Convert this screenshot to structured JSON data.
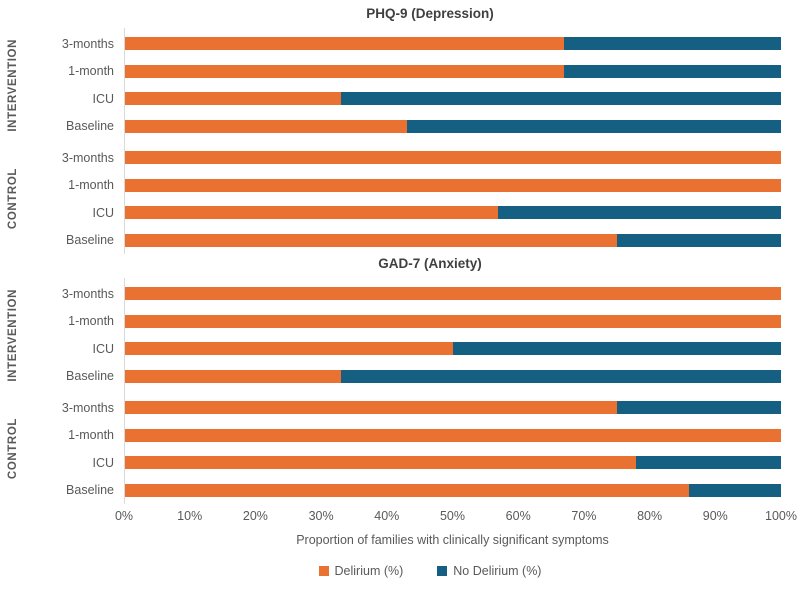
{
  "chart_data": {
    "type": "bar",
    "stacked": true,
    "orientation": "horizontal",
    "unit": "%",
    "xlim": [
      0,
      100
    ],
    "x_ticks": [
      "0%",
      "10%",
      "20%",
      "30%",
      "40%",
      "50%",
      "60%",
      "70%",
      "80%",
      "90%",
      "100%"
    ],
    "xlabel": "Proportion of families with clinically significant symptoms",
    "grid": false,
    "legend_position": "bottom",
    "legend": [
      {
        "label": "Delirium (%)",
        "color": "#E97132"
      },
      {
        "label": "No Delirium (%)",
        "color": "#156082"
      }
    ],
    "series_order": [
      "Delirium (%)",
      "No Delirium (%)"
    ],
    "panels": [
      {
        "title": "PHQ-9 (Depression)",
        "groups": [
          {
            "label": "INTERVENTION",
            "rows": [
              {
                "label": "3-months",
                "delirium": 67,
                "no_delirium": 33
              },
              {
                "label": "1-month",
                "delirium": 67,
                "no_delirium": 33
              },
              {
                "label": "ICU",
                "delirium": 33,
                "no_delirium": 67
              },
              {
                "label": "Baseline",
                "delirium": 43,
                "no_delirium": 57
              }
            ]
          },
          {
            "label": "CONTROL",
            "rows": [
              {
                "label": "3-months",
                "delirium": 100,
                "no_delirium": 0
              },
              {
                "label": "1-month",
                "delirium": 100,
                "no_delirium": 0
              },
              {
                "label": "ICU",
                "delirium": 57,
                "no_delirium": 43
              },
              {
                "label": "Baseline",
                "delirium": 75,
                "no_delirium": 25
              }
            ]
          }
        ]
      },
      {
        "title": "GAD-7 (Anxiety)",
        "groups": [
          {
            "label": "INTERVENTION",
            "rows": [
              {
                "label": "3-months",
                "delirium": 100,
                "no_delirium": 0
              },
              {
                "label": "1-month",
                "delirium": 100,
                "no_delirium": 0
              },
              {
                "label": "ICU",
                "delirium": 50,
                "no_delirium": 50
              },
              {
                "label": "Baseline",
                "delirium": 33,
                "no_delirium": 67
              }
            ]
          },
          {
            "label": "CONTROL",
            "rows": [
              {
                "label": "3-months",
                "delirium": 75,
                "no_delirium": 25
              },
              {
                "label": "1-month",
                "delirium": 100,
                "no_delirium": 0
              },
              {
                "label": "ICU",
                "delirium": 78,
                "no_delirium": 22
              },
              {
                "label": "Baseline",
                "delirium": 86,
                "no_delirium": 14
              }
            ]
          }
        ]
      }
    ]
  },
  "colors": {
    "delirium": "#E97132",
    "no_delirium": "#156082",
    "axis_line": "#d9d9d9",
    "text": "#595959",
    "title_text": "#404040",
    "background": "#ffffff"
  }
}
